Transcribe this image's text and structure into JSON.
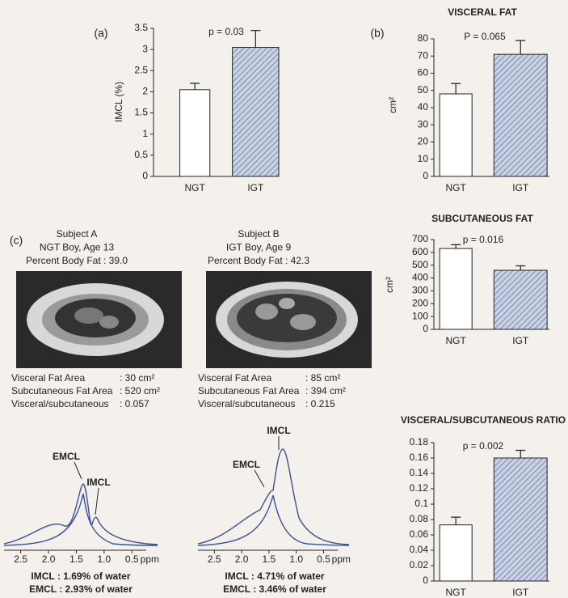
{
  "chart_data": [
    {
      "type": "bar",
      "panel_label": "(a)",
      "annotation": "p = 0.03",
      "ylabel": "IMCL (%)",
      "categories": [
        "NGT",
        "IGT"
      ],
      "values": [
        2.05,
        3.05
      ],
      "errors": [
        0.15,
        0.4
      ],
      "colors": [
        "#ffffff",
        "#c8d2e4"
      ],
      "hatch": [
        false,
        true
      ],
      "ylim": [
        0,
        3.5
      ],
      "yticks": [
        0,
        0.5,
        1,
        1.5,
        2,
        2.5,
        3,
        3.5
      ]
    },
    {
      "type": "bar",
      "panel_label": "(b)",
      "title": "VISCERAL FAT",
      "annotation": "P = 0.065",
      "ylabel": "cm²",
      "categories": [
        "NGT",
        "IGT"
      ],
      "values": [
        48,
        71
      ],
      "errors": [
        6,
        8
      ],
      "colors": [
        "#ffffff",
        "#c8d2e4"
      ],
      "hatch": [
        false,
        true
      ],
      "ylim": [
        0,
        80
      ],
      "yticks": [
        0,
        10,
        20,
        30,
        40,
        50,
        60,
        70,
        80
      ]
    },
    {
      "type": "bar",
      "title": "SUBCUTANEOUS FAT",
      "annotation": "p = 0.016",
      "ylabel": "cm²",
      "categories": [
        "NGT",
        "IGT"
      ],
      "values": [
        630,
        460
      ],
      "errors": [
        30,
        35
      ],
      "colors": [
        "#ffffff",
        "#c8d2e4"
      ],
      "hatch": [
        false,
        true
      ],
      "ylim": [
        0,
        700
      ],
      "yticks": [
        0,
        100,
        200,
        300,
        400,
        500,
        600,
        700
      ]
    },
    {
      "type": "bar",
      "title": "VISCERAL/SUBCUTANEOUS RATIO",
      "annotation": "p = 0.002",
      "categories": [
        "NGT",
        "IGT"
      ],
      "values": [
        0.073,
        0.16
      ],
      "errors": [
        0.01,
        0.01
      ],
      "colors": [
        "#ffffff",
        "#c8d2e4"
      ],
      "hatch": [
        false,
        true
      ],
      "ylim": [
        0,
        0.18
      ],
      "yticks": [
        0,
        0.02,
        0.04,
        0.06,
        0.08,
        0.1,
        0.12,
        0.14,
        0.16,
        0.18
      ]
    }
  ],
  "panel_c": {
    "label": "(c)",
    "subjects": [
      {
        "heading": [
          "Subject A",
          "NGT Boy, Age 13",
          "Percent Body Fat : 39.0"
        ],
        "rows": [
          [
            "Visceral Fat Area",
            ": 30 cm²"
          ],
          [
            "Subcutaneous Fat Area",
            ": 520 cm²"
          ],
          [
            "Visceral/subcutaneous",
            ": 0.057"
          ]
        ],
        "spectrum": {
          "xlim": [
            2.8,
            0.3
          ],
          "xticks": [
            2.5,
            {
              "value": 2,
              "label": "2.0"
            },
            1.5,
            {
              "value": 1,
              "label": "1.0"
            },
            0.5
          ],
          "unit": "ppm",
          "peaks": [
            "EMCL",
            "IMCL"
          ],
          "results": [
            "IMCL : 1.69% of water",
            "EMCL : 2.93% of water"
          ]
        }
      },
      {
        "heading": [
          "Subject B",
          "IGT Boy, Age 9",
          "Percent Body Fat : 42.3"
        ],
        "rows": [
          [
            "Visceral Fat Area",
            ": 85 cm²"
          ],
          [
            "Subcutaneous Fat Area",
            ": 394 cm²"
          ],
          [
            "Visceral/subcutaneous",
            ": 0.215"
          ]
        ],
        "spectrum": {
          "xlim": [
            2.8,
            0.3
          ],
          "xticks": [
            2.5,
            {
              "value": 2,
              "label": "2.0"
            },
            1.5,
            {
              "value": 1,
              "label": "1.0"
            },
            0.5
          ],
          "unit": "ppm",
          "peaks": [
            "EMCL",
            "IMCL"
          ],
          "results": [
            "IMCL : 4.71% of water",
            "EMCL : 3.46% of water"
          ]
        }
      }
    ]
  }
}
